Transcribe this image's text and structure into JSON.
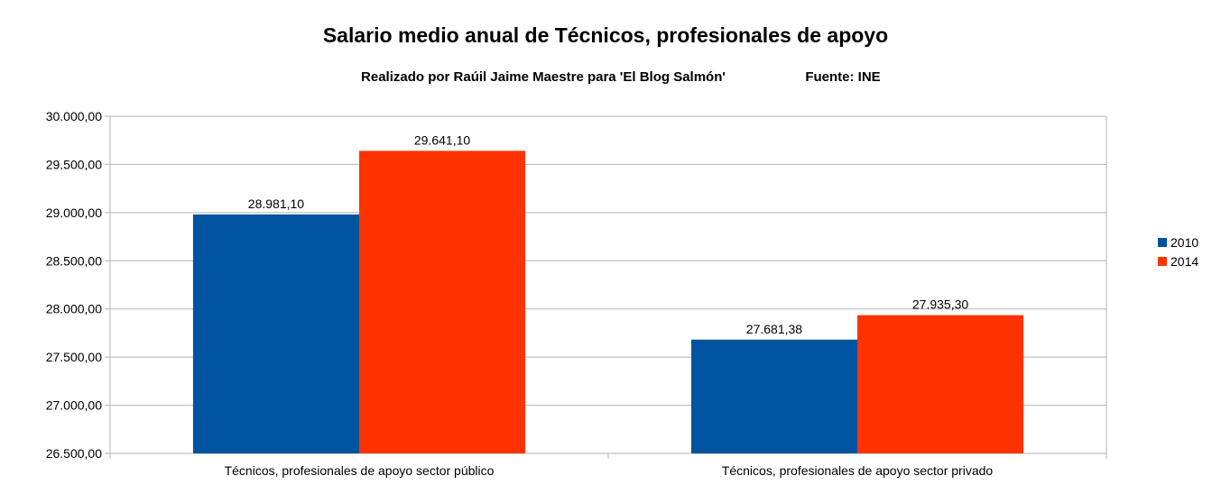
{
  "chart_data": {
    "type": "bar",
    "title": "Salario medio anual de Técnicos, profesionales de apoyo",
    "subtitle_left": "Realizado por Raúil Jaime Maestre para 'El Blog Salmón'",
    "subtitle_right": "Fuente: INE",
    "categories": [
      "Técnicos, profesionales de apoyo sector público",
      "Técnicos, profesionales de apoyo sector privado"
    ],
    "series": [
      {
        "name": "2010",
        "color": "#00539e",
        "values": [
          28981.1,
          27681.38
        ],
        "labels": [
          "28.981,10",
          "27.681,38"
        ]
      },
      {
        "name": "2014",
        "color": "#ff3300",
        "values": [
          29641.1,
          27935.3
        ],
        "labels": [
          "29.641,10",
          "27.935,30"
        ]
      }
    ],
    "ylim": [
      26500,
      30000
    ],
    "yticks": [
      {
        "value": 30000,
        "label": "30.000,00"
      },
      {
        "value": 29500,
        "label": "29.500,00"
      },
      {
        "value": 29000,
        "label": "29.000,00"
      },
      {
        "value": 28500,
        "label": "28.500,00"
      },
      {
        "value": 28000,
        "label": "28.000,00"
      },
      {
        "value": 27500,
        "label": "27.500,00"
      },
      {
        "value": 27000,
        "label": "27.000,00"
      },
      {
        "value": 26500,
        "label": "26.500,00"
      }
    ],
    "xlabel": "",
    "ylabel": "",
    "grid": true,
    "legend_position": "right"
  }
}
